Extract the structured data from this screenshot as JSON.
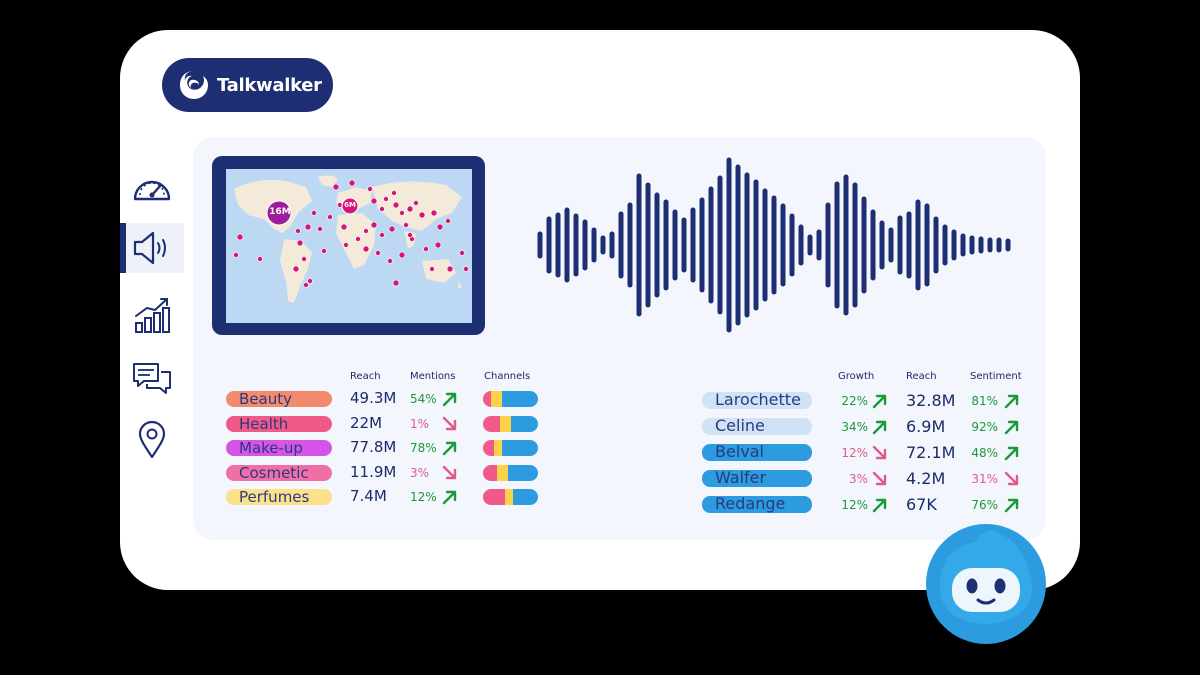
{
  "app": {
    "brand": "Talkwalker"
  },
  "nav": {
    "items": [
      {
        "icon": "speedometer-icon"
      },
      {
        "icon": "speaker-icon",
        "active": true
      },
      {
        "icon": "bar-chart-icon"
      },
      {
        "icon": "chat-bubbles-icon"
      },
      {
        "icon": "location-pin-icon"
      }
    ]
  },
  "map": {
    "bubbles": [
      {
        "label": "16M"
      },
      {
        "label": "6M"
      }
    ]
  },
  "left_table": {
    "headers": {
      "reach": "Reach",
      "mentions": "Mentions",
      "channels": "Channels"
    },
    "rows": [
      {
        "label": "Beauty",
        "pill_color": "#f28a6e",
        "reach": "49.3M",
        "mentions": "54%",
        "trend": "up",
        "channels": [
          0.15,
          0.2,
          0.65
        ]
      },
      {
        "label": "Health",
        "pill_color": "#ef5a88",
        "reach": "22M",
        "mentions": "1%",
        "trend": "down",
        "channels": [
          0.3,
          0.2,
          0.5
        ]
      },
      {
        "label": "Make-up",
        "pill_color": "#d455e8",
        "reach": "77.8M",
        "mentions": "78%",
        "trend": "up",
        "channels": [
          0.2,
          0.15,
          0.65
        ]
      },
      {
        "label": "Cosmetic",
        "pill_color": "#f06fa5",
        "reach": "11.9M",
        "mentions": "3%",
        "trend": "down",
        "channels": [
          0.25,
          0.2,
          0.55
        ]
      },
      {
        "label": "Perfumes",
        "pill_color": "#fbe18a",
        "reach": "7.4M",
        "mentions": "12%",
        "trend": "up",
        "channels": [
          0.4,
          0.15,
          0.45
        ]
      }
    ]
  },
  "right_table": {
    "headers": {
      "growth": "Growth",
      "reach": "Reach",
      "sentiment": "Sentiment"
    },
    "rows": [
      {
        "label": "Larochette",
        "pill_color": "#cfe3f5",
        "growth": "22%",
        "growth_trend": "up",
        "reach": "32.8M",
        "sentiment": "81%",
        "sentiment_trend": "up"
      },
      {
        "label": "Celine",
        "pill_color": "#cfe3f5",
        "growth": "34%",
        "growth_trend": "up",
        "reach": "6.9M",
        "sentiment": "92%",
        "sentiment_trend": "up"
      },
      {
        "label": "Belval",
        "pill_color": "#2d9be0",
        "growth": "12%",
        "growth_trend": "down",
        "reach": "72.1M",
        "sentiment": "48%",
        "sentiment_trend": "up"
      },
      {
        "label": "Walfer",
        "pill_color": "#2d9be0",
        "growth": "3%",
        "growth_trend": "down",
        "reach": "4.2M",
        "sentiment": "31%",
        "sentiment_trend": "down"
      },
      {
        "label": "Redange",
        "pill_color": "#2d9be0",
        "growth": "12%",
        "growth_trend": "up",
        "reach": "67K",
        "sentiment": "76%",
        "sentiment_trend": "up"
      }
    ]
  },
  "colors": {
    "navy": "#1e2e72",
    "channel_pink": "#ef5a88",
    "channel_yellow": "#fbd24a",
    "channel_blue": "#2d9be0",
    "up": "#1a9a3a",
    "down": "#e05a8a"
  }
}
